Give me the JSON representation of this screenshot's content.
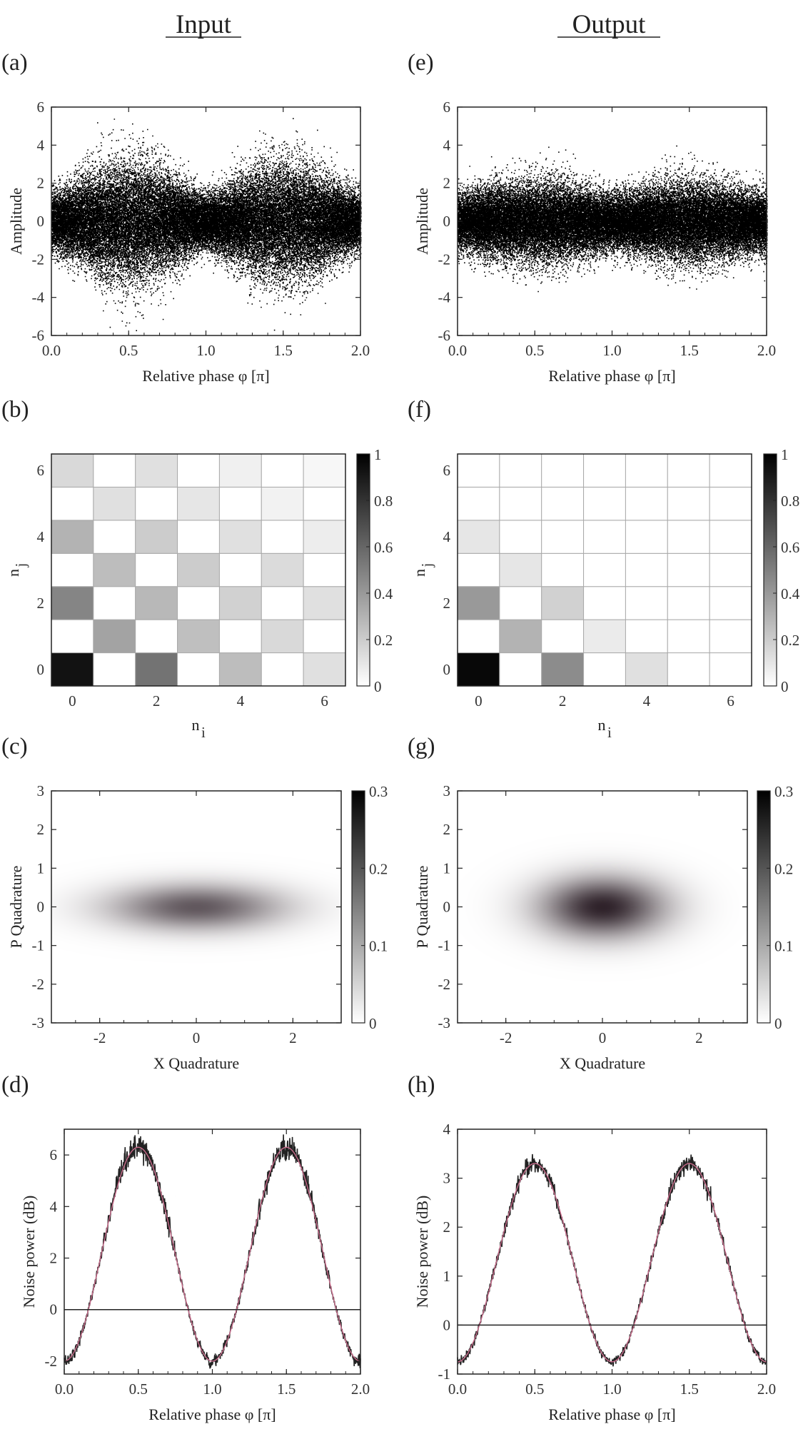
{
  "column_titles": [
    "Input",
    "Output"
  ],
  "colors": {
    "ink": "#000000",
    "grid": "#aaaaaa",
    "fit_line": "#c76a8a",
    "density": "#3a2a30"
  },
  "chart_data": [
    {
      "id": "a",
      "panel_label": "(a)",
      "type": "scatter",
      "xlabel": "Relative phase φ [π]",
      "ylabel": "Amplitude",
      "xlim": [
        0,
        2
      ],
      "ylim": [
        -6,
        6
      ],
      "xticks": [
        "0.0",
        "0.5",
        "1.0",
        "1.5",
        "2.0"
      ],
      "yticks": [
        "-6",
        "-4",
        "-2",
        "0",
        "2",
        "4",
        "6"
      ],
      "envelope_sd": {
        "at_phase_0": 0.75,
        "at_phase_0.5": 1.55
      },
      "max_abs_amplitude": 5.8
    },
    {
      "id": "b",
      "panel_label": "(b)",
      "type": "heatmap",
      "xlabel": "n",
      "xlabel_sub": "i",
      "ylabel": "n",
      "ylabel_sub": "j",
      "x": [
        0,
        1,
        2,
        3,
        4,
        5,
        6
      ],
      "y": [
        0,
        1,
        2,
        3,
        4,
        5,
        6
      ],
      "xticks": [
        "0",
        "2",
        "4",
        "6"
      ],
      "yticks": [
        "0",
        "2",
        "4",
        "6"
      ],
      "values": [
        [
          0.93,
          0,
          0.55,
          0,
          0.26,
          0,
          0.12
        ],
        [
          0,
          0.36,
          0,
          0.25,
          0,
          0.15,
          0
        ],
        [
          0.48,
          0,
          0.28,
          0,
          0.18,
          0,
          0.12
        ],
        [
          0,
          0.26,
          0,
          0.2,
          0,
          0.14,
          0
        ],
        [
          0.3,
          0,
          0.2,
          0,
          0.12,
          0,
          0.07
        ],
        [
          0,
          0.12,
          0,
          0.1,
          0,
          0.05,
          0
        ],
        [
          0.15,
          0,
          0.12,
          0,
          0.06,
          0,
          0.03
        ]
      ],
      "colorbar": {
        "min": 0,
        "max": 1,
        "ticks": [
          "0",
          "0.2",
          "0.4",
          "0.6",
          "0.8",
          "1"
        ]
      }
    },
    {
      "id": "c",
      "panel_label": "(c)",
      "type": "heatmap",
      "xlabel": "X Quadrature",
      "ylabel": "P Quadrature",
      "xlim": [
        -3,
        3
      ],
      "ylim": [
        -3,
        3
      ],
      "xticks": [
        "-2",
        "0",
        "2"
      ],
      "yticks": [
        "-3",
        "-2",
        "-1",
        "0",
        "1",
        "2",
        "3"
      ],
      "gaussian": {
        "peak": 0.22,
        "sigma_x": 1.25,
        "sigma_p": 0.42
      },
      "colorbar": {
        "min": 0,
        "max": 0.3,
        "ticks": [
          "0",
          "0.1",
          "0.2",
          "0.3"
        ]
      }
    },
    {
      "id": "d",
      "panel_label": "(d)",
      "type": "line",
      "xlabel": "Relative phase φ [π]",
      "ylabel": "Noise power (dB)",
      "xlim": [
        0,
        2
      ],
      "ylim": [
        -2.5,
        7
      ],
      "xticks": [
        "0.0",
        "0.5",
        "1.0",
        "1.5",
        "2.0"
      ],
      "yticks": [
        "-2",
        "0",
        "2",
        "4",
        "6"
      ],
      "series": [
        {
          "x": [
            0,
            0.25,
            0.5,
            0.75,
            1.0,
            1.25,
            1.5,
            1.75,
            2.0
          ],
          "y": [
            -2.0,
            4.4,
            6.3,
            4.4,
            -2.0,
            4.4,
            6.3,
            4.4,
            -2.0
          ]
        }
      ],
      "reference_line": 0
    },
    {
      "id": "e",
      "panel_label": "(e)",
      "type": "scatter",
      "xlabel": "Relative phase φ [π]",
      "ylabel": "Amplitude",
      "xlim": [
        0,
        2
      ],
      "ylim": [
        -6,
        6
      ],
      "xticks": [
        "0.0",
        "0.5",
        "1.0",
        "1.5",
        "2.0"
      ],
      "yticks": [
        "-6",
        "-4",
        "-2",
        "0",
        "2",
        "4",
        "6"
      ],
      "envelope_sd": {
        "at_phase_0": 0.75,
        "at_phase_0.5": 1.05
      },
      "max_abs_amplitude": 4.4
    },
    {
      "id": "f",
      "panel_label": "(f)",
      "type": "heatmap",
      "xlabel": "n",
      "xlabel_sub": "i",
      "ylabel": "n",
      "ylabel_sub": "j",
      "x": [
        0,
        1,
        2,
        3,
        4,
        5,
        6
      ],
      "y": [
        0,
        1,
        2,
        3,
        4,
        5,
        6
      ],
      "xticks": [
        "0",
        "2",
        "4",
        "6"
      ],
      "yticks": [
        "0",
        "2",
        "4",
        "6"
      ],
      "values": [
        [
          0.97,
          0,
          0.45,
          0,
          0.12,
          0,
          0
        ],
        [
          0,
          0.3,
          0,
          0.08,
          0,
          0,
          0
        ],
        [
          0.4,
          0,
          0.18,
          0,
          0,
          0,
          0
        ],
        [
          0,
          0.1,
          0,
          0,
          0,
          0,
          0
        ],
        [
          0.1,
          0,
          0,
          0,
          0,
          0,
          0
        ],
        [
          0,
          0,
          0,
          0,
          0,
          0,
          0
        ],
        [
          0,
          0,
          0,
          0,
          0,
          0,
          0
        ]
      ],
      "colorbar": {
        "min": 0,
        "max": 1,
        "ticks": [
          "0",
          "0.2",
          "0.4",
          "0.6",
          "0.8",
          "1"
        ]
      }
    },
    {
      "id": "g",
      "panel_label": "(g)",
      "type": "heatmap",
      "xlabel": "X Quadrature",
      "ylabel": "P Quadrature",
      "xlim": [
        -3,
        3
      ],
      "ylim": [
        -3,
        3
      ],
      "xticks": [
        "-2",
        "0",
        "2"
      ],
      "yticks": [
        "-3",
        "-2",
        "-1",
        "0",
        "1",
        "2",
        "3"
      ],
      "gaussian": {
        "peak": 0.29,
        "sigma_x": 0.9,
        "sigma_p": 0.55
      },
      "colorbar": {
        "min": 0,
        "max": 0.3,
        "ticks": [
          "0",
          "0.1",
          "0.2",
          "0.3"
        ]
      }
    },
    {
      "id": "h",
      "panel_label": "(h)",
      "type": "line",
      "xlabel": "Relative phase φ [π]",
      "ylabel": "Noise power (dB)",
      "xlim": [
        0,
        2
      ],
      "ylim": [
        -1,
        4
      ],
      "xticks": [
        "0.0",
        "0.5",
        "1.0",
        "1.5",
        "2.0"
      ],
      "yticks": [
        "-1",
        "0",
        "1",
        "2",
        "3",
        "4"
      ],
      "series": [
        {
          "x": [
            0,
            0.25,
            0.5,
            0.75,
            1.0,
            1.25,
            1.5,
            1.75,
            2.0
          ],
          "y": [
            -0.75,
            2.3,
            3.3,
            2.3,
            -0.75,
            2.3,
            3.3,
            2.3,
            -0.75
          ]
        }
      ],
      "reference_line": 0
    }
  ]
}
